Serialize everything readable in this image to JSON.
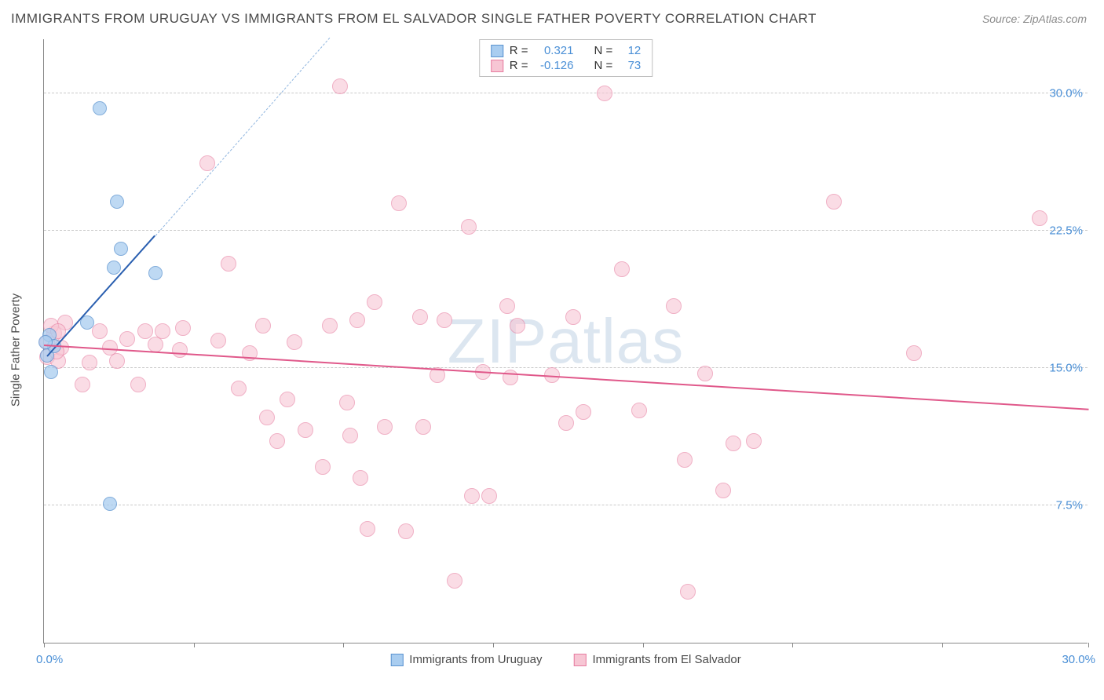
{
  "title": "IMMIGRANTS FROM URUGUAY VS IMMIGRANTS FROM EL SALVADOR SINGLE FATHER POVERTY CORRELATION CHART",
  "source": "Source: ZipAtlas.com",
  "watermark": "ZIPatlas",
  "ylabel": "Single Father Poverty",
  "xlim": [
    0,
    30
  ],
  "ylim": [
    0,
    33
  ],
  "yticks": [
    {
      "v": 7.5,
      "label": "7.5%"
    },
    {
      "v": 15.0,
      "label": "15.0%"
    },
    {
      "v": 22.5,
      "label": "22.5%"
    },
    {
      "v": 30.0,
      "label": "30.0%"
    }
  ],
  "xtick_marks": [
    0,
    4.3,
    8.6,
    12.9,
    17.2,
    21.5,
    25.8,
    30
  ],
  "xaxis": {
    "left": "0.0%",
    "right": "30.0%"
  },
  "series": [
    {
      "name": "Immigrants from Uruguay",
      "fill": "#a9cdf0",
      "stroke": "#5a93d0",
      "r_label": "R =",
      "r_value": "0.321",
      "n_label": "N =",
      "n_value": "12",
      "marker_radius": 9,
      "marker_opacity": 0.75,
      "trend": {
        "x1": 0.1,
        "y1": 15.6,
        "x2": 3.2,
        "y2": 22.2,
        "width": 2,
        "dash": false,
        "color": "#2a5fb0"
      },
      "trend_ext": {
        "x1": 3.2,
        "y1": 22.2,
        "x2": 8.2,
        "y2": 33,
        "width": 1,
        "dash": true,
        "color": "#8fb5df"
      },
      "points": [
        {
          "x": 0.1,
          "y": 15.7
        },
        {
          "x": 0.2,
          "y": 14.8
        },
        {
          "x": 0.15,
          "y": 16.8
        },
        {
          "x": 0.3,
          "y": 16.2
        },
        {
          "x": 1.25,
          "y": 17.5
        },
        {
          "x": 1.6,
          "y": 29.2
        },
        {
          "x": 2.0,
          "y": 20.5
        },
        {
          "x": 1.9,
          "y": 7.6
        },
        {
          "x": 2.1,
          "y": 24.1
        },
        {
          "x": 2.2,
          "y": 21.5
        },
        {
          "x": 3.2,
          "y": 20.2
        },
        {
          "x": 0.05,
          "y": 16.4
        }
      ]
    },
    {
      "name": "Immigrants from El Salvador",
      "fill": "#f7c6d4",
      "stroke": "#e77ca0",
      "r_label": "R =",
      "r_value": "-0.126",
      "n_label": "N =",
      "n_value": "73",
      "marker_radius": 10,
      "marker_opacity": 0.6,
      "trend": {
        "x1": 0,
        "y1": 16.2,
        "x2": 30,
        "y2": 12.7,
        "width": 2,
        "dash": false,
        "color": "#e0588a"
      },
      "points": [
        {
          "x": 0.1,
          "y": 16.4
        },
        {
          "x": 0.1,
          "y": 15.6
        },
        {
          "x": 0.3,
          "y": 16.9
        },
        {
          "x": 0.4,
          "y": 15.4
        },
        {
          "x": 0.5,
          "y": 16.1
        },
        {
          "x": 0.6,
          "y": 17.5
        },
        {
          "x": 1.1,
          "y": 14.1
        },
        {
          "x": 1.3,
          "y": 15.3
        },
        {
          "x": 1.6,
          "y": 17.0
        },
        {
          "x": 1.9,
          "y": 16.1
        },
        {
          "x": 2.1,
          "y": 15.4
        },
        {
          "x": 2.4,
          "y": 16.6
        },
        {
          "x": 2.9,
          "y": 17.0
        },
        {
          "x": 2.7,
          "y": 14.1
        },
        {
          "x": 3.2,
          "y": 16.3
        },
        {
          "x": 3.4,
          "y": 17.0
        },
        {
          "x": 3.9,
          "y": 16.0
        },
        {
          "x": 4.0,
          "y": 17.2
        },
        {
          "x": 4.7,
          "y": 26.2
        },
        {
          "x": 5.0,
          "y": 16.5
        },
        {
          "x": 5.3,
          "y": 20.7
        },
        {
          "x": 5.6,
          "y": 13.9
        },
        {
          "x": 5.9,
          "y": 15.8
        },
        {
          "x": 6.3,
          "y": 17.3
        },
        {
          "x": 6.4,
          "y": 12.3
        },
        {
          "x": 6.7,
          "y": 11.0
        },
        {
          "x": 7.0,
          "y": 13.3
        },
        {
          "x": 7.2,
          "y": 16.4
        },
        {
          "x": 7.5,
          "y": 11.6
        },
        {
          "x": 8.0,
          "y": 9.6
        },
        {
          "x": 8.2,
          "y": 17.3
        },
        {
          "x": 8.5,
          "y": 30.4
        },
        {
          "x": 8.7,
          "y": 13.1
        },
        {
          "x": 8.8,
          "y": 11.3
        },
        {
          "x": 9.0,
          "y": 17.6
        },
        {
          "x": 9.1,
          "y": 9.0
        },
        {
          "x": 9.3,
          "y": 6.2
        },
        {
          "x": 9.5,
          "y": 18.6
        },
        {
          "x": 9.8,
          "y": 11.8
        },
        {
          "x": 10.2,
          "y": 24.0
        },
        {
          "x": 10.4,
          "y": 6.1
        },
        {
          "x": 10.8,
          "y": 17.8
        },
        {
          "x": 10.9,
          "y": 11.8
        },
        {
          "x": 11.3,
          "y": 14.6
        },
        {
          "x": 11.5,
          "y": 17.6
        },
        {
          "x": 11.8,
          "y": 3.4
        },
        {
          "x": 12.2,
          "y": 22.7
        },
        {
          "x": 12.3,
          "y": 8.0
        },
        {
          "x": 12.6,
          "y": 14.8
        },
        {
          "x": 12.8,
          "y": 8.0
        },
        {
          "x": 13.3,
          "y": 18.4
        },
        {
          "x": 13.4,
          "y": 14.5
        },
        {
          "x": 13.6,
          "y": 17.3
        },
        {
          "x": 14.6,
          "y": 14.6
        },
        {
          "x": 15.0,
          "y": 12.0
        },
        {
          "x": 15.2,
          "y": 17.8
        },
        {
          "x": 15.5,
          "y": 12.6
        },
        {
          "x": 16.1,
          "y": 30.0
        },
        {
          "x": 16.6,
          "y": 20.4
        },
        {
          "x": 17.1,
          "y": 12.7
        },
        {
          "x": 18.1,
          "y": 18.4
        },
        {
          "x": 18.4,
          "y": 10.0
        },
        {
          "x": 18.5,
          "y": 2.8
        },
        {
          "x": 19.0,
          "y": 14.7
        },
        {
          "x": 19.5,
          "y": 8.3
        },
        {
          "x": 19.8,
          "y": 10.9
        },
        {
          "x": 20.4,
          "y": 11.0
        },
        {
          "x": 22.7,
          "y": 24.1
        },
        {
          "x": 25.0,
          "y": 15.8
        },
        {
          "x": 28.6,
          "y": 23.2
        },
        {
          "x": 0.2,
          "y": 17.3
        },
        {
          "x": 0.35,
          "y": 15.9
        },
        {
          "x": 0.4,
          "y": 17.0
        }
      ]
    }
  ]
}
